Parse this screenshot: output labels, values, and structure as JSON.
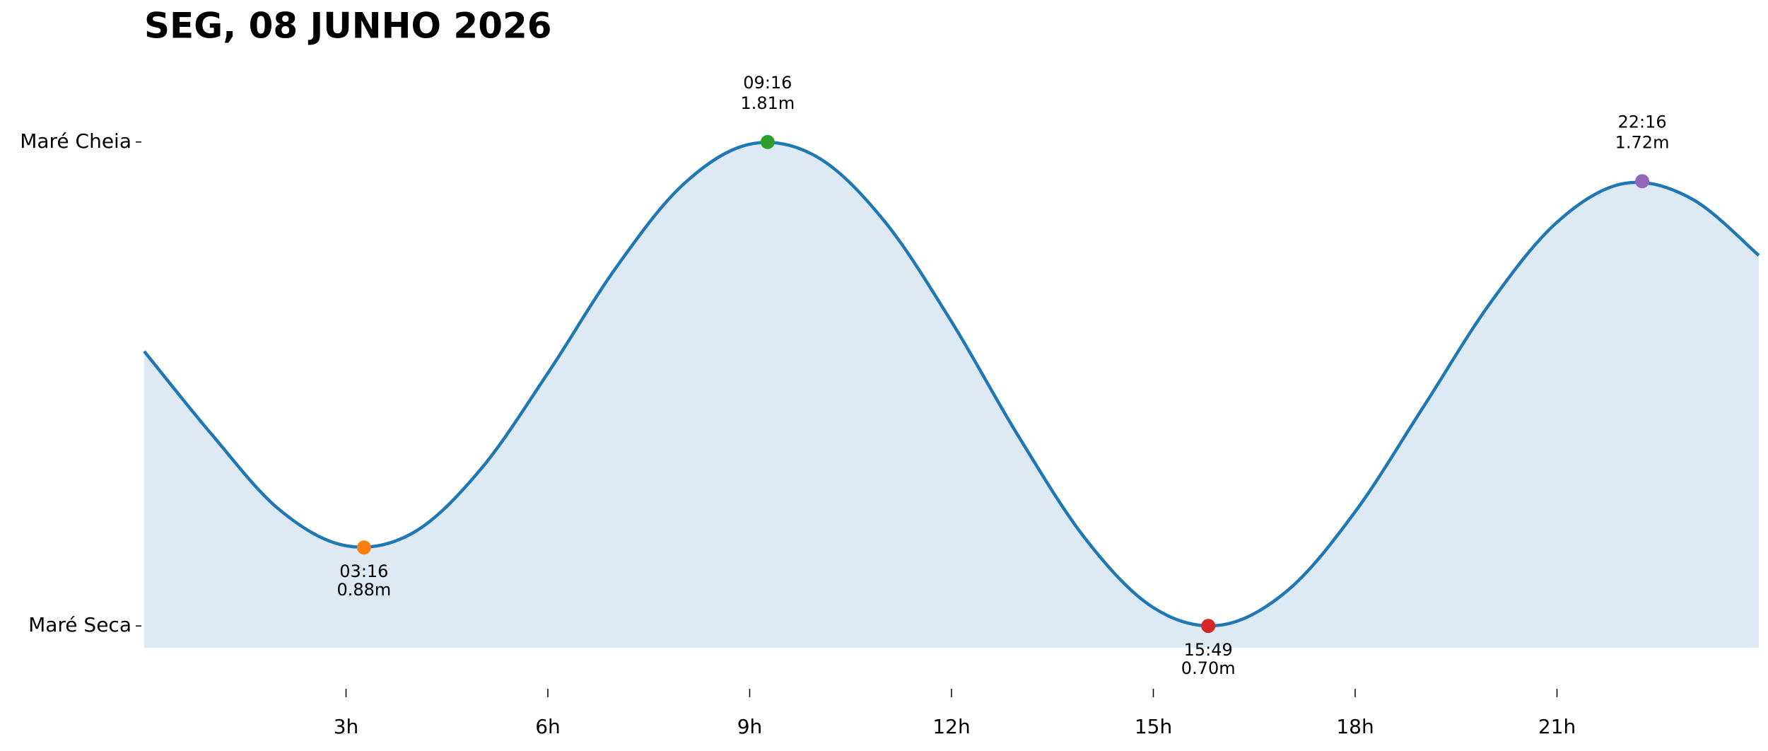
{
  "chart_data": {
    "type": "line",
    "title": "SEG, 08 JUNHO 2026",
    "x": [
      0,
      1,
      2,
      3,
      4,
      5,
      6,
      7,
      8,
      9,
      10,
      11,
      12,
      13,
      14,
      15,
      16,
      17,
      18,
      19,
      20,
      21,
      22,
      23,
      24
    ],
    "series": [
      {
        "color": "#1f77b4",
        "fill": "#dde9f3",
        "values": [
          1.33,
          1.14,
          0.968,
          0.884,
          0.914,
          1.059,
          1.28,
          1.519,
          1.711,
          1.805,
          1.776,
          1.629,
          1.398,
          1.134,
          0.898,
          0.742,
          0.702,
          0.782,
          0.962,
          1.199,
          1.439,
          1.626,
          1.715,
          1.68,
          1.55
        ]
      }
    ],
    "extremes": [
      {
        "time": "03:16",
        "value": 0.88,
        "value_label": "0.88m",
        "color": "#ff7f0e",
        "position": "below"
      },
      {
        "time": "09:16",
        "value": 1.81,
        "value_label": "1.81m",
        "color": "#2ca02c",
        "position": "above"
      },
      {
        "time": "15:49",
        "value": 0.7,
        "value_label": "0.70m",
        "color": "#d62728",
        "position": "below"
      },
      {
        "time": "22:16",
        "value": 1.72,
        "value_label": "1.72m",
        "color": "#9467bd",
        "position": "above"
      }
    ],
    "xlim": [
      0,
      24
    ],
    "ylim": [
      0.65,
      1.98
    ],
    "xticks": [
      {
        "value": 3,
        "label": "3h"
      },
      {
        "value": 6,
        "label": "6h"
      },
      {
        "value": 9,
        "label": "9h"
      },
      {
        "value": 12,
        "label": "12h"
      },
      {
        "value": 15,
        "label": "15h"
      },
      {
        "value": 18,
        "label": "18h"
      },
      {
        "value": 21,
        "label": "21h"
      }
    ],
    "yticks": [
      {
        "value": 0.7,
        "label": "Maré Seca"
      },
      {
        "value": 1.81,
        "label": "Maré Cheia"
      }
    ]
  }
}
